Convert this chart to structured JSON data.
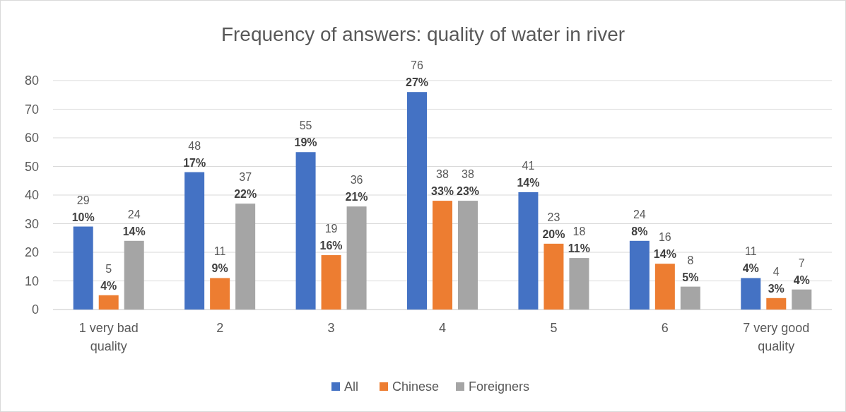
{
  "chart_data": {
    "type": "bar",
    "title": "Frequency of answers: quality of water in river",
    "categories": [
      "1 very bad quality",
      "2",
      "3",
      "4",
      "5",
      "6",
      "7 very good quality"
    ],
    "series": [
      {
        "name": "All",
        "color": "#4472c4",
        "values": [
          29,
          48,
          55,
          76,
          41,
          24,
          11
        ],
        "value_labels": [
          "29\n10%",
          "48\n17%",
          "55\n19%",
          "76\n27%",
          "41\n14%",
          "24\n8%",
          "11\n4%"
        ]
      },
      {
        "name": "Chinese",
        "color": "#ed7d31",
        "values": [
          5,
          11,
          19,
          38,
          23,
          16,
          4
        ],
        "value_labels": [
          "5\n4%",
          "11\n9%",
          "19\n16%",
          "38\n33%",
          "23\n20%",
          "16\n14%",
          "4\n3%"
        ]
      },
      {
        "name": "Foreigners",
        "color": "#a5a5a5",
        "values": [
          24,
          37,
          36,
          38,
          18,
          8,
          7
        ],
        "value_labels": [
          "24\n14%",
          "37\n22%",
          "36\n21%",
          "38\n23%",
          "18\n11%",
          "8\n5%",
          "7\n4%"
        ]
      }
    ],
    "ylim": [
      0,
      80
    ],
    "yticks": [
      0,
      10,
      20,
      30,
      40,
      50,
      60,
      70,
      80
    ],
    "grid": "y",
    "legend": "bottom"
  }
}
